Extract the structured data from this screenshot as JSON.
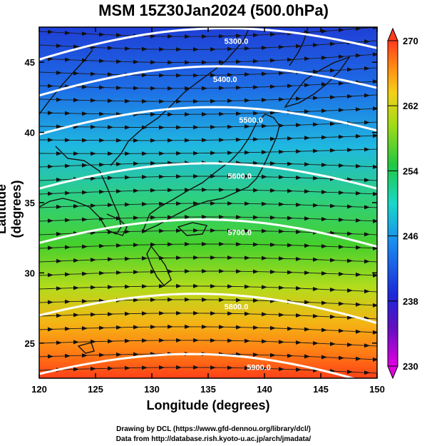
{
  "title": "MSM 15Z30Jan2024 (500.0hPa)",
  "xaxis": {
    "label": "Longitude (degrees)",
    "range": [
      120,
      150
    ],
    "ticks": [
      "120",
      "125",
      "130",
      "135",
      "140",
      "145",
      "150"
    ]
  },
  "yaxis": {
    "label": "Latitude  (degrees)",
    "range": [
      22.5,
      47.5
    ],
    "ticks": [
      "25",
      "30",
      "35",
      "40",
      "45"
    ]
  },
  "colorbar": {
    "ticks": [
      "230",
      "238",
      "246",
      "254",
      "262",
      "270"
    ],
    "min": 230,
    "max": 270
  },
  "contours": [
    {
      "label": "5300.0",
      "label_lon": 137.5,
      "label_lat": 46.5
    },
    {
      "label": "5400.0",
      "label_lon": 136.5,
      "label_lat": 43.8
    },
    {
      "label": "5500.0",
      "label_lon": 138.8,
      "label_lat": 40.9
    },
    {
      "label": "5600.0",
      "label_lon": 137.8,
      "label_lat": 36.9
    },
    {
      "label": "5700.0",
      "label_lon": 137.8,
      "label_lat": 32.9
    },
    {
      "label": "5800.0",
      "label_lon": 137.5,
      "label_lat": 27.6
    },
    {
      "label": "5900.0",
      "label_lon": 139.5,
      "label_lat": 23.3
    }
  ],
  "credits": {
    "line1": "Drawing by DCL (https://www.gfd-dennou.org/library/dcl/)",
    "line2": "Data from http://database.rish.kyoto-u.ac.jp/arch/jmadata/"
  },
  "colors": {
    "low": "#1a2ad8",
    "mid": "#22c840",
    "high": "#ff3c1e"
  }
}
